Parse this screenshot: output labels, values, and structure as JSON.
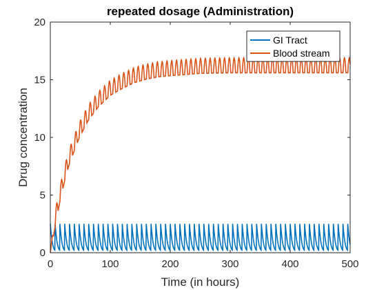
{
  "chart_data": {
    "type": "line",
    "title": "repeated dosage (Administration)",
    "xlabel": "Time (in hours)",
    "ylabel": "Drug concentration",
    "xlim": [
      0,
      500
    ],
    "ylim": [
      0,
      20
    ],
    "xticks": [
      0,
      100,
      200,
      300,
      400,
      500
    ],
    "yticks": [
      0,
      5,
      10,
      15,
      20
    ],
    "grid": false,
    "legend_position": "top-right",
    "dosing_interval_hours": 8,
    "series": [
      {
        "name": "GI Tract",
        "color": "#0072BD",
        "x": [
          0,
          1,
          2,
          3,
          4,
          5,
          6,
          7,
          8
        ],
        "y": [
          2.5,
          1.9,
          1.4,
          1.0,
          0.7,
          0.5,
          0.35,
          0.25,
          0.2
        ],
        "periodic": true,
        "peak": 2.5,
        "trough": 0.2
      },
      {
        "name": "Blood stream",
        "color": "#D95319",
        "x": [
          0,
          8,
          16,
          24,
          32,
          48,
          64,
          80,
          100,
          120,
          140,
          160,
          180,
          200,
          250,
          300,
          350,
          400,
          450,
          500
        ],
        "y": [
          0,
          2.9,
          5.1,
          6.9,
          8.4,
          10.6,
          12.2,
          13.3,
          14.3,
          14.9,
          15.4,
          15.7,
          15.9,
          16.0,
          16.2,
          16.25,
          16.25,
          16.25,
          16.25,
          16.25
        ],
        "ripple_amplitude": 1.3
      }
    ]
  }
}
